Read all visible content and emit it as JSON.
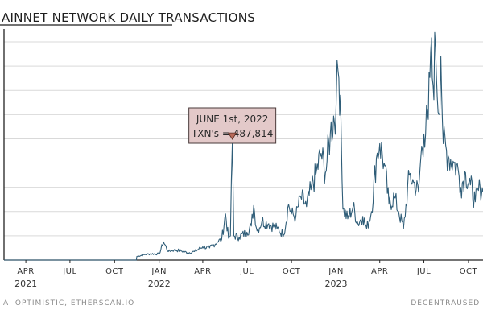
{
  "chart_data": {
    "type": "line",
    "title": "AINNET NETWORK DAILY TRANSACTIONS",
    "source": "A: OPTIMISTIC, ETHERSCAN.IO",
    "watermark": "DECENTRAUSED.",
    "x_ticks": [
      "APR",
      "JUL",
      "OCT",
      "JAN",
      "APR",
      "JUL",
      "OCT",
      "JAN",
      "APR",
      "JUL",
      "OCT"
    ],
    "x_years": [
      {
        "label": "2021",
        "under_tick": 0
      },
      {
        "label": "2022",
        "under_tick": 3
      },
      {
        "label": "2023",
        "under_tick": 7
      }
    ],
    "annotation": {
      "line1": "JUNE 1st, 2022",
      "line2": "TXN's = 487,814",
      "date": "2022-06-01",
      "value": 487814
    },
    "x_range": [
      "2021-02-15",
      "2023-10-31"
    ],
    "ylim": [
      0,
      900000
    ],
    "grid": true,
    "colors": {
      "line": "#2f5d78",
      "annotation_fill": "#e3c9c9",
      "annotation_marker": "#b96a5a",
      "grid": "#d9d9d9"
    },
    "series": [
      {
        "values": [
          [
            "2021-02-15",
            0
          ],
          [
            "2021-11-15",
            0
          ],
          [
            "2021-11-16",
            15000
          ],
          [
            "2021-12-01",
            22000
          ],
          [
            "2021-12-15",
            26000
          ],
          [
            "2022-01-01",
            25000
          ],
          [
            "2022-01-10",
            75000
          ],
          [
            "2022-01-20",
            35000
          ],
          [
            "2022-02-01",
            42000
          ],
          [
            "2022-02-15",
            38000
          ],
          [
            "2022-03-01",
            30000
          ],
          [
            "2022-03-15",
            35000
          ],
          [
            "2022-04-01",
            55000
          ],
          [
            "2022-04-15",
            50000
          ],
          [
            "2022-05-01",
            75000
          ],
          [
            "2022-05-10",
            85000
          ],
          [
            "2022-05-18",
            190000
          ],
          [
            "2022-05-24",
            90000
          ],
          [
            "2022-05-28",
            100000
          ],
          [
            "2022-06-01",
            487814
          ],
          [
            "2022-06-04",
            100000
          ],
          [
            "2022-06-15",
            95000
          ],
          [
            "2022-07-01",
            115000
          ],
          [
            "2022-07-10",
            140000
          ],
          [
            "2022-07-15",
            225000
          ],
          [
            "2022-07-22",
            120000
          ],
          [
            "2022-08-01",
            160000
          ],
          [
            "2022-08-15",
            150000
          ],
          [
            "2022-09-01",
            130000
          ],
          [
            "2022-09-15",
            105000
          ],
          [
            "2022-09-25",
            230000
          ],
          [
            "2022-10-01",
            190000
          ],
          [
            "2022-10-10",
            180000
          ],
          [
            "2022-10-20",
            260000
          ],
          [
            "2022-11-01",
            220000
          ],
          [
            "2022-11-10",
            290000
          ],
          [
            "2022-11-20",
            350000
          ],
          [
            "2022-12-01",
            440000
          ],
          [
            "2022-12-10",
            360000
          ],
          [
            "2022-12-20",
            520000
          ],
          [
            "2023-01-01",
            640000
          ],
          [
            "2023-01-05",
            780000
          ],
          [
            "2023-01-10",
            680000
          ],
          [
            "2023-01-15",
            210000
          ],
          [
            "2023-01-25",
            170000
          ],
          [
            "2023-02-05",
            220000
          ],
          [
            "2023-02-15",
            150000
          ],
          [
            "2023-02-25",
            180000
          ],
          [
            "2023-03-05",
            130000
          ],
          [
            "2023-03-15",
            200000
          ],
          [
            "2023-03-25",
            420000
          ],
          [
            "2023-04-01",
            480000
          ],
          [
            "2023-04-10",
            400000
          ],
          [
            "2023-04-20",
            230000
          ],
          [
            "2023-05-01",
            260000
          ],
          [
            "2023-05-10",
            200000
          ],
          [
            "2023-05-20",
            130000
          ],
          [
            "2023-06-01",
            350000
          ],
          [
            "2023-06-10",
            320000
          ],
          [
            "2023-06-20",
            280000
          ],
          [
            "2023-06-25",
            430000
          ],
          [
            "2023-07-01",
            520000
          ],
          [
            "2023-07-10",
            580000
          ],
          [
            "2023-07-15",
            860000
          ],
          [
            "2023-07-20",
            720000
          ],
          [
            "2023-07-25",
            880000
          ],
          [
            "2023-08-01",
            600000
          ],
          [
            "2023-08-05",
            840000
          ],
          [
            "2023-08-10",
            480000
          ],
          [
            "2023-08-20",
            430000
          ],
          [
            "2023-09-01",
            400000
          ],
          [
            "2023-09-10",
            370000
          ],
          [
            "2023-09-15",
            300000
          ],
          [
            "2023-09-25",
            360000
          ],
          [
            "2023-10-05",
            310000
          ],
          [
            "2023-10-15",
            240000
          ],
          [
            "2023-10-25",
            300000
          ],
          [
            "2023-10-31",
            280000
          ]
        ]
      }
    ]
  }
}
